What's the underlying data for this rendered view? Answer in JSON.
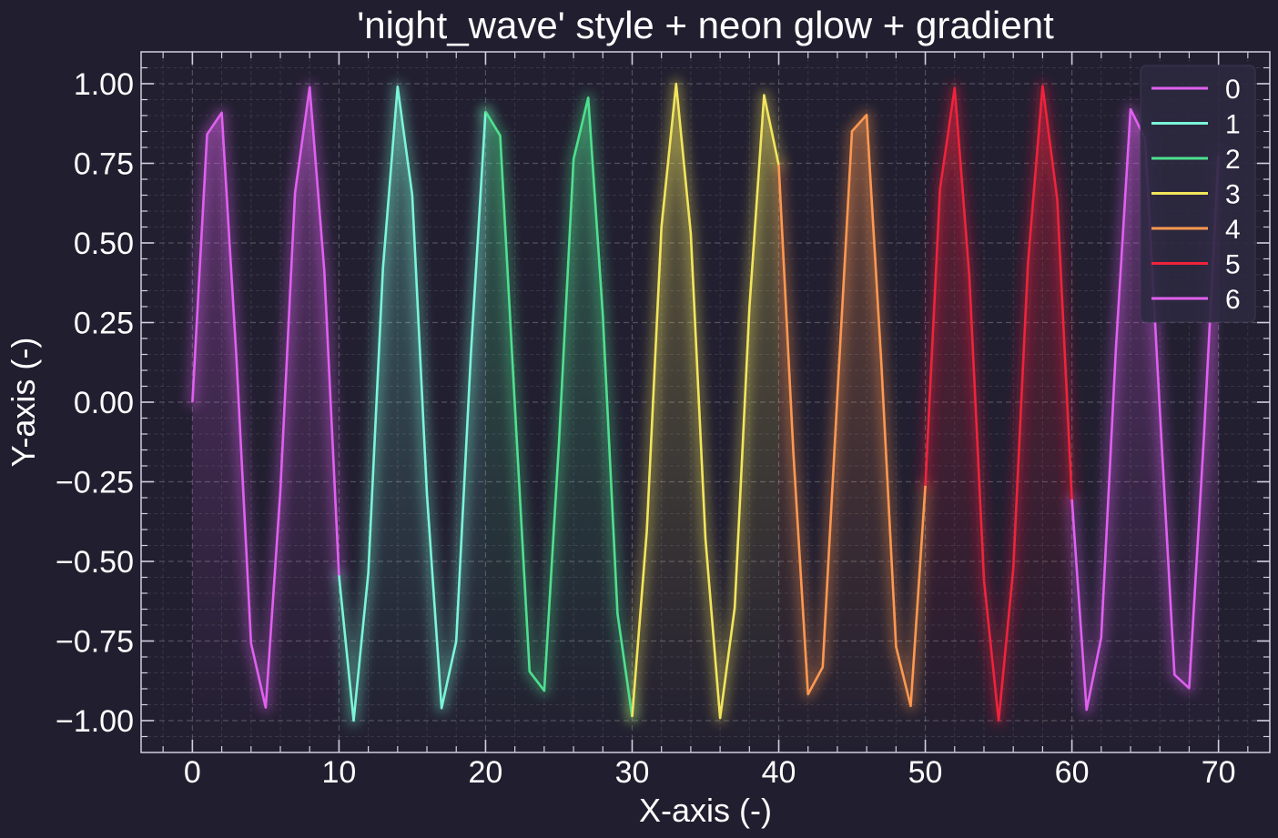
{
  "chart_data": {
    "type": "line",
    "title": "'night_wave' style + neon glow + gradient",
    "xlabel": "X-axis (-)",
    "ylabel": "Y-axis (-)",
    "xlim": [
      -3.5,
      73.5
    ],
    "ylim": [
      -1.1,
      1.1
    ],
    "x_ticks": [
      0,
      10,
      20,
      30,
      40,
      50,
      60,
      70
    ],
    "x_tick_labels": [
      "0",
      "10",
      "20",
      "30",
      "40",
      "50",
      "60",
      "70"
    ],
    "y_ticks": [
      1.0,
      0.75,
      0.5,
      0.25,
      0.0,
      -0.25,
      -0.5,
      -0.75,
      -1.0
    ],
    "y_tick_labels": [
      "1.00",
      "0.75",
      "0.50",
      "0.25",
      "0.00",
      "−0.25",
      "−0.50",
      "−0.75",
      "−1.00"
    ],
    "grid": true,
    "legend_position": "top-right",
    "background": "#211e2f",
    "axes_color": "#cfcfe0",
    "series": [
      {
        "name": "0",
        "color": "#e060f0",
        "x": [
          0,
          1,
          2,
          3,
          4,
          5,
          6,
          7,
          8,
          9,
          10
        ],
        "y": [
          0.0,
          0.841,
          0.909,
          0.141,
          -0.757,
          -0.959,
          -0.279,
          0.657,
          0.989,
          0.412,
          -0.544
        ]
      },
      {
        "name": "1",
        "color": "#7af5d8",
        "x": [
          10,
          11,
          12,
          13,
          14,
          15,
          16,
          17,
          18,
          19,
          20
        ],
        "y": [
          -0.544,
          -1.0,
          -0.537,
          0.42,
          0.991,
          0.65,
          -0.288,
          -0.961,
          -0.751,
          0.15,
          0.913
        ]
      },
      {
        "name": "2",
        "color": "#4ee08e",
        "x": [
          20,
          21,
          22,
          23,
          24,
          25,
          26,
          27,
          28,
          29,
          30
        ],
        "y": [
          0.913,
          0.837,
          -0.009,
          -0.846,
          -0.906,
          -0.132,
          0.763,
          0.956,
          0.271,
          -0.664,
          -0.988
        ]
      },
      {
        "name": "3",
        "color": "#f2e55c",
        "x": [
          30,
          31,
          32,
          33,
          34,
          35,
          36,
          37,
          38,
          39,
          40
        ],
        "y": [
          -0.988,
          -0.404,
          0.551,
          1.0,
          0.529,
          -0.428,
          -0.992,
          -0.644,
          0.296,
          0.964,
          0.745
        ]
      },
      {
        "name": "4",
        "color": "#ff9850",
        "x": [
          40,
          41,
          42,
          43,
          44,
          45,
          46,
          47,
          48,
          49,
          50
        ],
        "y": [
          0.745,
          -0.159,
          -0.917,
          -0.832,
          0.018,
          0.851,
          0.902,
          0.124,
          -0.768,
          -0.954,
          -0.262
        ]
      },
      {
        "name": "5",
        "color": "#f0223c",
        "x": [
          50,
          51,
          52,
          53,
          54,
          55,
          56,
          57,
          58,
          59,
          60
        ],
        "y": [
          -0.262,
          0.67,
          0.987,
          0.396,
          -0.559,
          -1.0,
          -0.522,
          0.436,
          0.993,
          0.637,
          -0.305
        ]
      },
      {
        "name": "6",
        "color": "#e060f0",
        "x": [
          60,
          61,
          62,
          63,
          64,
          65,
          66,
          67,
          68,
          69,
          70
        ],
        "y": [
          -0.305,
          -0.966,
          -0.739,
          0.167,
          0.92,
          0.827,
          -0.027,
          -0.856,
          -0.898,
          -0.115,
          0.774
        ]
      }
    ]
  }
}
